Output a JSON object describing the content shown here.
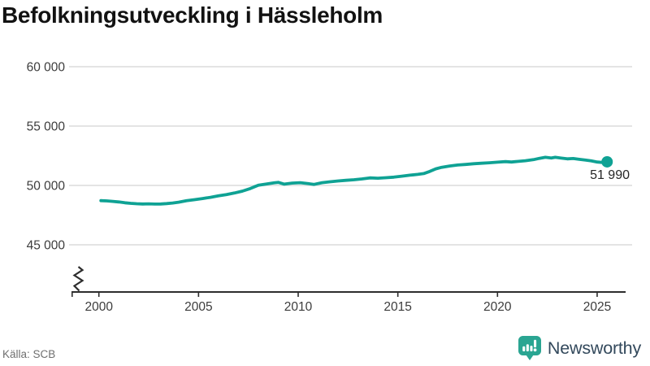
{
  "title": "Befolkningsutveckling i Hässleholm",
  "source": "Källa: SCB",
  "branding": {
    "name": "Newsworthy",
    "icon": "newsworthy-speech-bubble-chart-icon",
    "icon_color": "#2aa592",
    "text_color": "#33495c"
  },
  "chart_data": {
    "type": "line",
    "title": "Befolkningsutveckling i Hässleholm",
    "xlabel": "",
    "ylabel": "",
    "grid": "horizontal",
    "axis_break_at_zero": true,
    "x_ticks": [
      2000,
      2005,
      2010,
      2015,
      2020,
      2025
    ],
    "y_ticks": [
      {
        "value": 45000,
        "label": "45 000"
      },
      {
        "value": 50000,
        "label": "50 000"
      },
      {
        "value": 55000,
        "label": "55 000"
      },
      {
        "value": 60000,
        "label": "60 000"
      }
    ],
    "ylim": [
      45000,
      60000
    ],
    "xlim": [
      1998.6,
      2026.4
    ],
    "latest_value": 51990,
    "end_label": "51 990",
    "series": [
      {
        "name": "Befolkning i Hässleholm",
        "color": "#0fa294",
        "points": [
          [
            2000.1,
            48720
          ],
          [
            2000.4,
            48700
          ],
          [
            2000.7,
            48660
          ],
          [
            2001.0,
            48610
          ],
          [
            2001.3,
            48540
          ],
          [
            2001.6,
            48490
          ],
          [
            2001.9,
            48460
          ],
          [
            2002.2,
            48440
          ],
          [
            2002.5,
            48450
          ],
          [
            2002.8,
            48430
          ],
          [
            2003.1,
            48440
          ],
          [
            2003.4,
            48470
          ],
          [
            2003.7,
            48520
          ],
          [
            2004.0,
            48590
          ],
          [
            2004.4,
            48720
          ],
          [
            2004.8,
            48800
          ],
          [
            2005.2,
            48900
          ],
          [
            2005.6,
            49000
          ],
          [
            2006.0,
            49120
          ],
          [
            2006.4,
            49230
          ],
          [
            2006.8,
            49360
          ],
          [
            2007.2,
            49520
          ],
          [
            2007.6,
            49740
          ],
          [
            2008.0,
            50020
          ],
          [
            2008.4,
            50120
          ],
          [
            2008.8,
            50220
          ],
          [
            2009.0,
            50260
          ],
          [
            2009.3,
            50110
          ],
          [
            2009.7,
            50200
          ],
          [
            2010.1,
            50230
          ],
          [
            2010.5,
            50150
          ],
          [
            2010.8,
            50090
          ],
          [
            2011.2,
            50230
          ],
          [
            2011.6,
            50310
          ],
          [
            2012.0,
            50380
          ],
          [
            2012.4,
            50430
          ],
          [
            2012.8,
            50480
          ],
          [
            2013.2,
            50550
          ],
          [
            2013.6,
            50640
          ],
          [
            2014.0,
            50610
          ],
          [
            2014.4,
            50650
          ],
          [
            2014.8,
            50700
          ],
          [
            2015.2,
            50780
          ],
          [
            2015.6,
            50860
          ],
          [
            2016.0,
            50930
          ],
          [
            2016.3,
            51000
          ],
          [
            2016.6,
            51180
          ],
          [
            2016.9,
            51400
          ],
          [
            2017.2,
            51530
          ],
          [
            2017.6,
            51640
          ],
          [
            2018.0,
            51720
          ],
          [
            2018.4,
            51770
          ],
          [
            2018.8,
            51830
          ],
          [
            2019.2,
            51870
          ],
          [
            2019.6,
            51910
          ],
          [
            2020.0,
            51960
          ],
          [
            2020.4,
            52010
          ],
          [
            2020.7,
            51970
          ],
          [
            2021.0,
            52020
          ],
          [
            2021.4,
            52080
          ],
          [
            2021.8,
            52170
          ],
          [
            2022.1,
            52280
          ],
          [
            2022.4,
            52370
          ],
          [
            2022.7,
            52310
          ],
          [
            2022.9,
            52370
          ],
          [
            2023.2,
            52300
          ],
          [
            2023.5,
            52240
          ],
          [
            2023.8,
            52270
          ],
          [
            2024.1,
            52200
          ],
          [
            2024.4,
            52140
          ],
          [
            2024.7,
            52070
          ],
          [
            2025.0,
            51970
          ],
          [
            2025.3,
            51930
          ],
          [
            2025.5,
            51990
          ]
        ]
      }
    ]
  }
}
